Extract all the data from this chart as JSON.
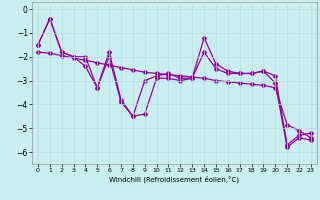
{
  "background_color": "#c8eef0",
  "line_color": "#990099",
  "grid_color": "#b8dfe0",
  "xlim": [
    -0.5,
    23.5
  ],
  "ylim": [
    -6.5,
    0.3
  ],
  "xticks": [
    0,
    1,
    2,
    3,
    4,
    5,
    6,
    7,
    8,
    9,
    10,
    11,
    12,
    13,
    14,
    15,
    16,
    17,
    18,
    19,
    20,
    21,
    22,
    23
  ],
  "yticks": [
    0,
    -1,
    -2,
    -3,
    -4,
    -5,
    -6
  ],
  "xlabel": "Windchill (Refroidissement éolien,°C)",
  "line1_x": [
    0,
    1,
    2,
    3,
    4,
    5,
    6,
    7,
    8,
    9,
    10,
    11,
    12,
    13,
    14,
    15,
    16,
    17,
    18,
    19,
    20,
    21,
    22,
    23
  ],
  "line1_y": [
    -1.5,
    -0.4,
    -1.8,
    -2.0,
    -2.0,
    -3.3,
    -1.8,
    -3.8,
    -4.5,
    -4.4,
    -2.9,
    -2.9,
    -3.0,
    -2.9,
    -1.2,
    -2.3,
    -2.6,
    -2.7,
    -2.7,
    -2.6,
    -2.8,
    -5.7,
    -5.3,
    -5.2
  ],
  "line2_x": [
    0,
    1,
    2,
    3,
    4,
    5,
    6,
    7,
    8,
    9,
    10,
    11,
    12,
    13,
    14,
    15,
    16,
    17,
    18,
    19,
    20,
    21,
    22,
    23
  ],
  "line2_y": [
    -1.5,
    -0.4,
    -1.8,
    -2.0,
    -2.4,
    -3.3,
    -2.0,
    -3.9,
    -4.5,
    -3.0,
    -2.8,
    -2.7,
    -2.9,
    -2.9,
    -1.8,
    -2.5,
    -2.7,
    -2.7,
    -2.7,
    -2.6,
    -3.1,
    -5.8,
    -5.4,
    -5.5
  ],
  "line3_x": [
    0,
    1,
    2,
    3,
    4,
    5,
    6,
    7,
    8,
    9,
    10,
    11,
    12,
    13,
    14,
    15,
    16,
    17,
    18,
    19,
    20,
    21,
    22,
    23
  ],
  "line3_y": [
    -1.8,
    -1.85,
    -1.95,
    -2.05,
    -2.15,
    -2.25,
    -2.35,
    -2.45,
    -2.55,
    -2.65,
    -2.7,
    -2.75,
    -2.8,
    -2.85,
    -2.9,
    -3.0,
    -3.05,
    -3.1,
    -3.15,
    -3.2,
    -3.3,
    -4.85,
    -5.1,
    -5.4
  ]
}
